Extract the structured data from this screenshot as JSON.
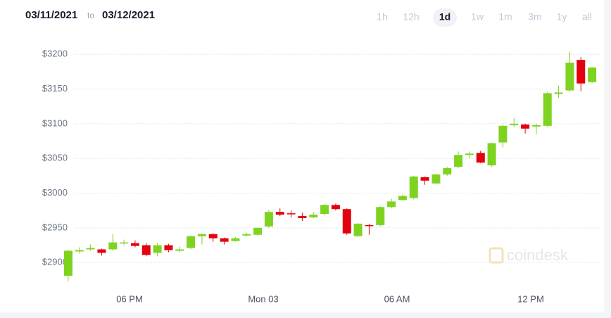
{
  "header": {
    "from": "03/11/2021",
    "separator": "to",
    "to": "03/12/2021",
    "ranges": [
      {
        "label": "1h",
        "selected": false
      },
      {
        "label": "12h",
        "selected": false
      },
      {
        "label": "1d",
        "selected": true
      },
      {
        "label": "1w",
        "selected": false
      },
      {
        "label": "1m",
        "selected": false
      },
      {
        "label": "3m",
        "selected": false
      },
      {
        "label": "1y",
        "selected": false
      },
      {
        "label": "all",
        "selected": false
      }
    ]
  },
  "chart_data": {
    "type": "candlestick",
    "watermark": "coindesk",
    "up_color": "#7ed321",
    "down_color": "#e3000f",
    "grid": true,
    "categories": [
      null,
      null,
      null,
      null,
      null,
      null,
      "06 PM",
      null,
      null,
      null,
      null,
      null,
      null,
      null,
      null,
      null,
      null,
      null,
      "Mon 03",
      null,
      null,
      null,
      null,
      null,
      null,
      null,
      null,
      null,
      null,
      null,
      "06 AM",
      null,
      null,
      null,
      null,
      null,
      null,
      null,
      null,
      null,
      null,
      null,
      "12 PM",
      null,
      null,
      null,
      null,
      null
    ],
    "open": [
      2881,
      2916,
      2919,
      2919,
      2919,
      2928,
      2928,
      2925,
      2914,
      2925,
      2917,
      2921,
      2938,
      2941,
      2935,
      2931,
      2939,
      2940,
      2952,
      2973,
      2971,
      2967,
      2965,
      2970,
      2983,
      2977,
      2938,
      2954,
      2954,
      2980,
      2990,
      2993,
      3023,
      3014,
      3027,
      3038,
      3055,
      3058,
      3040,
      3073,
      3098,
      3099,
      3096,
      3097,
      3143,
      3148,
      3192,
      3160
    ],
    "high": [
      2918,
      2922,
      2926,
      2920,
      2941,
      2933,
      2932,
      2928,
      2928,
      2927,
      2923,
      2939,
      2942,
      2942,
      2936,
      2937,
      2943,
      2951,
      2976,
      2978,
      2975,
      2972,
      2973,
      2984,
      2985,
      2978,
      2957,
      2956,
      2981,
      2992,
      2998,
      3025,
      3024,
      3028,
      3038,
      3060,
      3060,
      3061,
      3073,
      3099,
      3108,
      3100,
      3100,
      3146,
      3155,
      3204,
      3196,
      3182
    ],
    "low": [
      2873,
      2913,
      2917,
      2910,
      2917,
      2925,
      2922,
      2909,
      2909,
      2915,
      2915,
      2919,
      2926,
      2930,
      2926,
      2930,
      2937,
      2938,
      2950,
      2967,
      2965,
      2960,
      2964,
      2968,
      2975,
      2940,
      2937,
      2940,
      2952,
      2978,
      2989,
      2991,
      3012,
      3013,
      3025,
      3036,
      3050,
      3043,
      3038,
      3066,
      3095,
      3086,
      3085,
      3095,
      3137,
      3146,
      3147,
      3159
    ],
    "close": [
      2917,
      2918,
      2921,
      2914,
      2929,
      2929,
      2924,
      2911,
      2925,
      2918,
      2919,
      2938,
      2941,
      2935,
      2930,
      2935,
      2941,
      2950,
      2973,
      2969,
      2970,
      2964,
      2969,
      2983,
      2977,
      2942,
      2956,
      2953,
      2980,
      2988,
      2996,
      3024,
      3018,
      3027,
      3036,
      3055,
      3057,
      3044,
      3072,
      3097,
      3100,
      3093,
      3098,
      3144,
      3145,
      3188,
      3158,
      3181
    ],
    "ylim": [
      2870,
      3220
    ],
    "yticks": [
      {
        "value": 2900,
        "label": "$2900"
      },
      {
        "value": 2950,
        "label": "$2950"
      },
      {
        "value": 3000,
        "label": "$3000"
      },
      {
        "value": 3050,
        "label": "$3050"
      },
      {
        "value": 3100,
        "label": "$3100"
      },
      {
        "value": 3150,
        "label": "$3150"
      },
      {
        "value": 3200,
        "label": "$3200"
      }
    ]
  }
}
